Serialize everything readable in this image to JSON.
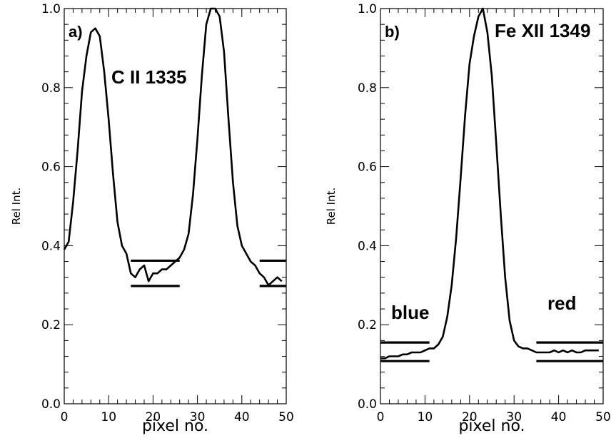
{
  "chart_data": [
    {
      "type": "line",
      "panel_label": "a)",
      "annotations": [
        "C II 1335"
      ],
      "xlabel": "pixel no.",
      "ylabel": "Rel Int.",
      "xlim": [
        0,
        50
      ],
      "ylim": [
        0.0,
        1.0
      ],
      "x_ticks": [
        0,
        10,
        20,
        30,
        40,
        50
      ],
      "y_ticks": [
        0.0,
        0.2,
        0.4,
        0.6,
        0.8,
        1.0
      ],
      "x_tick_labels": [
        "0",
        "10",
        "20",
        "30",
        "40",
        "50"
      ],
      "y_tick_labels": [
        "0.0",
        "0.2",
        "0.4",
        "0.6",
        "0.8",
        "1.0"
      ],
      "series": [
        {
          "x": [
            0,
            1,
            2,
            3,
            4,
            5,
            6,
            7,
            8,
            9,
            10,
            11,
            12,
            13,
            14,
            15,
            16,
            17,
            18,
            19,
            20,
            21,
            22,
            23,
            24,
            25,
            26,
            27,
            28,
            29,
            30,
            31,
            32,
            33,
            34,
            35,
            36,
            37,
            38,
            39,
            40,
            41,
            42,
            43,
            44,
            45,
            46,
            47,
            48,
            49
          ],
          "y": [
            0.39,
            0.41,
            0.51,
            0.64,
            0.79,
            0.88,
            0.94,
            0.95,
            0.93,
            0.84,
            0.72,
            0.58,
            0.46,
            0.4,
            0.38,
            0.33,
            0.32,
            0.34,
            0.35,
            0.31,
            0.33,
            0.33,
            0.34,
            0.34,
            0.35,
            0.36,
            0.37,
            0.39,
            0.43,
            0.53,
            0.67,
            0.83,
            0.96,
            1.0,
            1.0,
            0.98,
            0.89,
            0.72,
            0.56,
            0.45,
            0.4,
            0.38,
            0.36,
            0.35,
            0.33,
            0.32,
            0.3,
            0.31,
            0.32,
            0.31
          ]
        }
      ],
      "reference_lines": [
        {
          "x": [
            15,
            26
          ],
          "y": 0.362
        },
        {
          "x": [
            15,
            26
          ],
          "y": 0.298
        },
        {
          "x": [
            44,
            50
          ],
          "y": 0.362
        },
        {
          "x": [
            44,
            50
          ],
          "y": 0.298
        }
      ]
    },
    {
      "type": "line",
      "panel_label": "b)",
      "annotations": [
        "Fe XII 1349",
        "blue",
        "red"
      ],
      "xlabel": "pixel no.",
      "ylabel": "Rel Int.",
      "xlim": [
        0,
        50
      ],
      "ylim": [
        0.0,
        1.0
      ],
      "x_ticks": [
        0,
        10,
        20,
        30,
        40,
        50
      ],
      "y_ticks": [
        0.0,
        0.2,
        0.4,
        0.6,
        0.8,
        1.0
      ],
      "x_tick_labels": [
        "0",
        "10",
        "20",
        "30",
        "40",
        "50"
      ],
      "y_tick_labels": [
        "0.0",
        "0.2",
        "0.4",
        "0.6",
        "0.8",
        "1.0"
      ],
      "series": [
        {
          "x": [
            0,
            1,
            2,
            3,
            4,
            5,
            6,
            7,
            8,
            9,
            10,
            11,
            12,
            13,
            14,
            15,
            16,
            17,
            18,
            19,
            20,
            21,
            22,
            23,
            24,
            25,
            26,
            27,
            28,
            29,
            30,
            31,
            32,
            33,
            34,
            35,
            36,
            37,
            38,
            39,
            40,
            41,
            42,
            43,
            44,
            45,
            46,
            47,
            48,
            49
          ],
          "y": [
            0.115,
            0.115,
            0.12,
            0.12,
            0.12,
            0.125,
            0.125,
            0.13,
            0.13,
            0.13,
            0.135,
            0.14,
            0.14,
            0.15,
            0.17,
            0.22,
            0.3,
            0.42,
            0.57,
            0.73,
            0.86,
            0.93,
            0.98,
            1.0,
            0.94,
            0.83,
            0.66,
            0.48,
            0.32,
            0.21,
            0.16,
            0.145,
            0.14,
            0.14,
            0.135,
            0.13,
            0.13,
            0.13,
            0.13,
            0.135,
            0.13,
            0.135,
            0.13,
            0.135,
            0.13,
            0.13,
            0.135,
            0.135,
            0.135,
            0.135
          ]
        }
      ],
      "reference_lines": [
        {
          "x": [
            0,
            11
          ],
          "y": 0.155
        },
        {
          "x": [
            0,
            11
          ],
          "y": 0.108
        },
        {
          "x": [
            35,
            50
          ],
          "y": 0.155
        },
        {
          "x": [
            35,
            50
          ],
          "y": 0.108
        }
      ]
    }
  ]
}
